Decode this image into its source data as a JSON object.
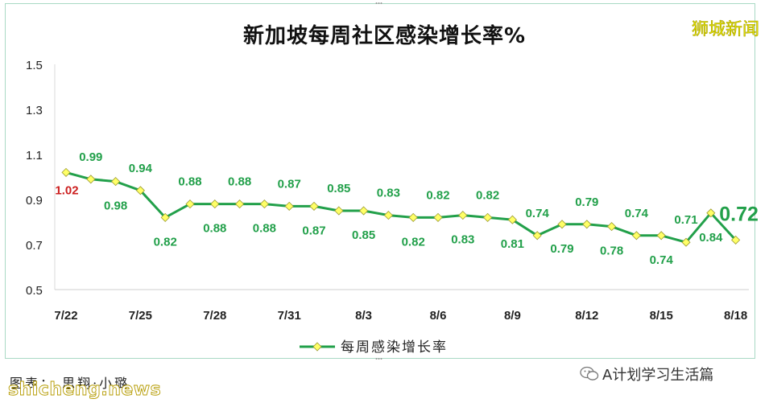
{
  "brand": "狮城新闻",
  "footer": {
    "credit": "图表： 思翔·小璐",
    "watermark": "shicheng.news",
    "wechat_account": "A计划学习生活篇",
    "wechat_icon": "wechat-icon"
  },
  "chart_data": {
    "type": "line",
    "title": "新加坡每周社区感染增长率%",
    "xlabel": "",
    "ylabel": "",
    "ylim": [
      0.5,
      1.5
    ],
    "yticks": [
      "0.5",
      "0.7",
      "0.9",
      "1.1",
      "1.3",
      "1.5"
    ],
    "xticks": [
      "7/22",
      "7/25",
      "7/28",
      "7/31",
      "8/3",
      "8/6",
      "8/9",
      "8/12",
      "8/15",
      "8/18"
    ],
    "grid": false,
    "legend_position": "bottom",
    "series": [
      {
        "name": "每周感染增长率",
        "color": "#22a04a",
        "marker_color": "#ffff66",
        "x": [
          "7/22",
          "7/23",
          "7/24",
          "7/25",
          "7/26",
          "7/27",
          "7/28",
          "7/29",
          "7/30",
          "7/31",
          "8/1",
          "8/2",
          "8/3",
          "8/4",
          "8/5",
          "8/6",
          "8/7",
          "8/8",
          "8/9",
          "8/10",
          "8/11",
          "8/12",
          "8/13",
          "8/14",
          "8/15",
          "8/16",
          "8/17",
          "8/18"
        ],
        "values": [
          1.02,
          0.99,
          0.98,
          0.94,
          0.82,
          0.88,
          0.88,
          0.88,
          0.88,
          0.87,
          0.87,
          0.85,
          0.85,
          0.83,
          0.82,
          0.82,
          0.83,
          0.82,
          0.81,
          0.74,
          0.79,
          0.79,
          0.78,
          0.74,
          0.74,
          0.71,
          0.84,
          0.72
        ],
        "labels": [
          "1.02",
          "0.99",
          "0.98",
          "0.94",
          "0.82",
          "0.88",
          "0.88",
          "0.88",
          "0.88",
          "0.87",
          "0.87",
          "0.85",
          "0.85",
          "0.83",
          "0.82",
          "0.82",
          "0.83",
          "0.82",
          "0.81",
          "0.74",
          "0.79",
          "0.79",
          "0.78",
          "0.74",
          "0.74",
          "0.71",
          "0.84",
          "0.72"
        ]
      }
    ]
  }
}
